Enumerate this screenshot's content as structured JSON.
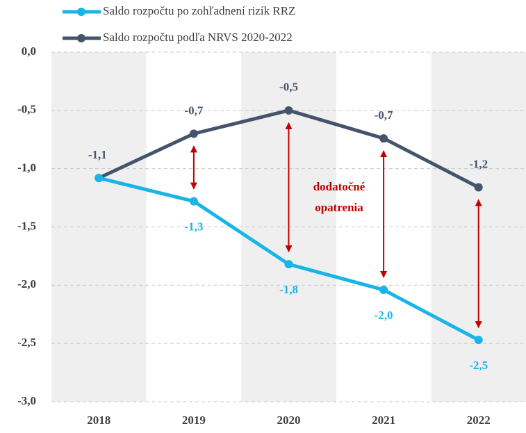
{
  "chart_data": {
    "type": "line",
    "categories": [
      "2018",
      "2019",
      "2020",
      "2021",
      "2022"
    ],
    "series": [
      {
        "name": "Saldo rozpočtu po zohľadnení rizík RRZ",
        "color": "#19b4e8",
        "values": [
          -1.08,
          -1.28,
          -1.82,
          -2.04,
          -2.47
        ],
        "value_labels": [
          null,
          "-1,3",
          "-1,8",
          "-2,0",
          "-2,5"
        ]
      },
      {
        "name": "Saldo rozpočtu podľa NRVS 2020-2022",
        "color": "#44546a",
        "values": [
          -1.08,
          -0.7,
          -0.5,
          -0.74,
          -1.16
        ],
        "value_labels": [
          "-1,1",
          "-0,7",
          "-0,5",
          "-0,7",
          "-1,2"
        ]
      }
    ],
    "annotations": [
      "dodatočné",
      "opatrenia"
    ],
    "ylim": [
      -3,
      0
    ],
    "yticks": [
      {
        "value": 0,
        "label": "0,0"
      },
      {
        "value": -0.5,
        "label": "-0,5"
      },
      {
        "value": -1,
        "label": "-1,0"
      },
      {
        "value": -1.5,
        "label": "-1,5"
      },
      {
        "value": -2,
        "label": "-2,0"
      },
      {
        "value": -2.5,
        "label": "-2,5"
      },
      {
        "value": -3,
        "label": "-3,0"
      }
    ],
    "grid": true
  }
}
